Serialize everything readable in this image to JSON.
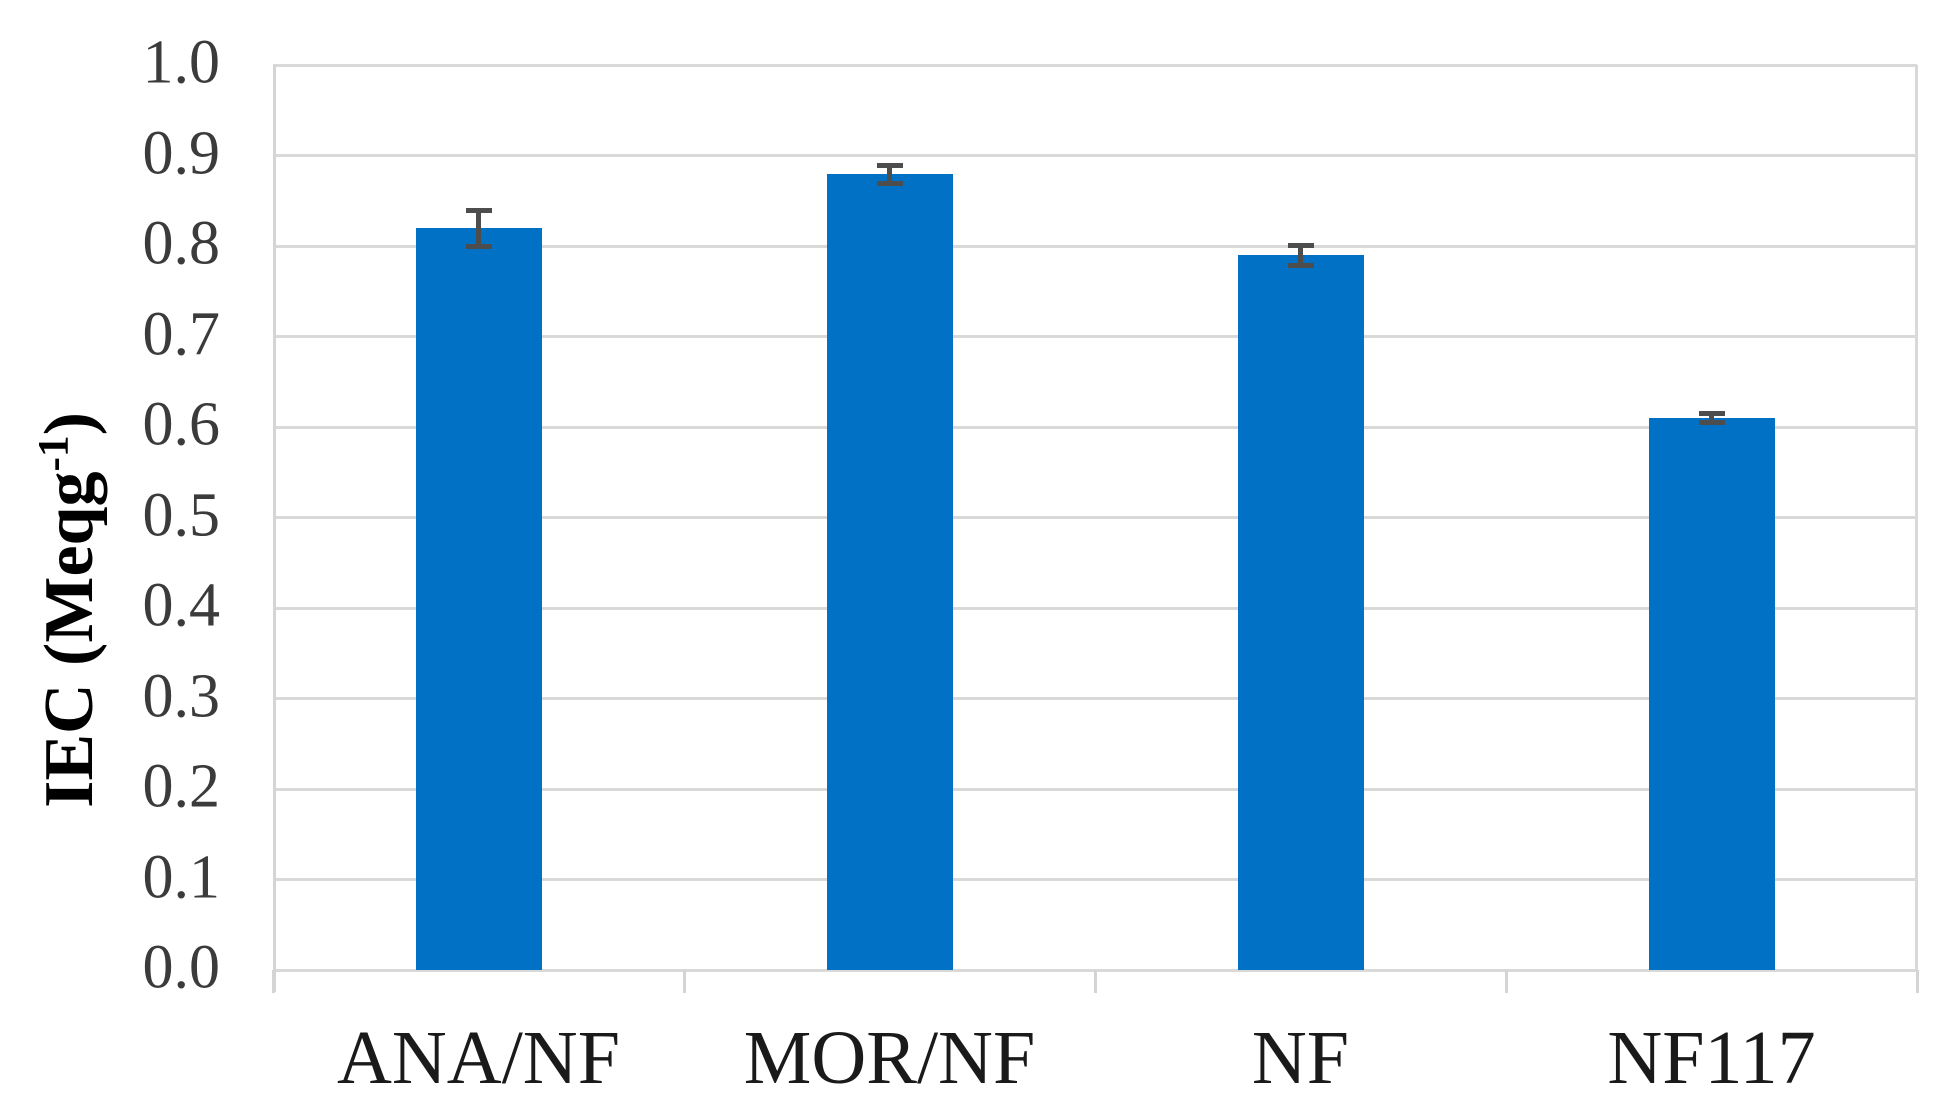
{
  "chart_data": {
    "type": "bar",
    "categories": [
      "ANA/NF",
      "MOR/NF",
      "NF",
      "NF117"
    ],
    "values": [
      0.82,
      0.88,
      0.79,
      0.61
    ],
    "errors": [
      0.02,
      0.01,
      0.011,
      0.005
    ],
    "title": "",
    "xlabel": "",
    "ylabel": "IEC (Meqg-1)",
    "ylabel_parts": {
      "prefix": "IEC (Meqg",
      "sup": "-1",
      "suffix": ")"
    },
    "ylim": [
      0.0,
      1.0
    ],
    "ytick_step": 0.1,
    "yticks": [
      "0.0",
      "0.1",
      "0.2",
      "0.3",
      "0.4",
      "0.5",
      "0.6",
      "0.7",
      "0.8",
      "0.9",
      "1.0"
    ],
    "grid": "horizontal",
    "legend": "none",
    "bar_color": "#0071C5",
    "error_bar_color": "#4D4D4D",
    "gridline_color": "#D9D9D9",
    "axis_color": "#D4D4D4",
    "ytick_label_color": "#3B3B3B",
    "category_label_color": "#1A1A1A"
  }
}
